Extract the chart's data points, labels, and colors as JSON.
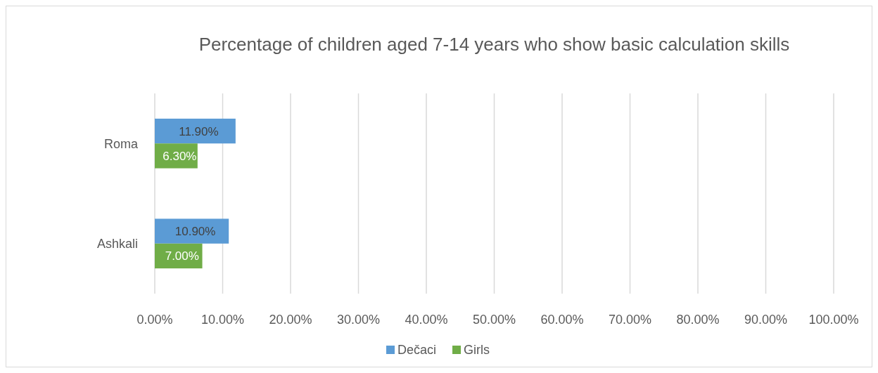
{
  "chart_data": {
    "type": "bar",
    "orientation": "horizontal",
    "title": "Percentage of children aged 7-14 years who show basic calculation skills",
    "categories": [
      "Roma",
      "Ashkali"
    ],
    "series": [
      {
        "name": "Dečaci",
        "color": "#5b9bd5",
        "values": [
          11.9,
          10.9
        ],
        "value_labels": [
          "11.90%",
          "10.90%"
        ]
      },
      {
        "name": "Girls",
        "color": "#70ad47",
        "values": [
          6.3,
          7.0
        ],
        "value_labels": [
          "6.30%",
          "7.00%"
        ]
      }
    ],
    "xlim": [
      0,
      100
    ],
    "xticks": [
      {
        "value": 0,
        "label": "0.00%"
      },
      {
        "value": 10,
        "label": "10.00%"
      },
      {
        "value": 20,
        "label": "20.00%"
      },
      {
        "value": 30,
        "label": "30.00%"
      },
      {
        "value": 40,
        "label": "40.00%"
      },
      {
        "value": 50,
        "label": "50.00%"
      },
      {
        "value": 60,
        "label": "60.00%"
      },
      {
        "value": 70,
        "label": "70.00%"
      },
      {
        "value": 80,
        "label": "80.00%"
      },
      {
        "value": 90,
        "label": "90.00%"
      },
      {
        "value": 100,
        "label": "100.00%"
      }
    ],
    "grid": "x",
    "legend": "bottom"
  }
}
